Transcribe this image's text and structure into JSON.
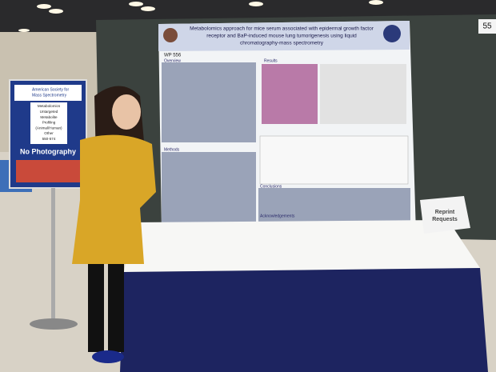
{
  "poster": {
    "title_lines": [
      "Metabolomics approach for mice serum associated with epidermal growth factor",
      "receptor and BaP-induced mouse lung tumorigenesis using liquid",
      "chromatography-mass spectrometry"
    ],
    "id": "WP 556",
    "sections": [
      "Overview",
      "Results",
      "Methods",
      "Conclusions",
      "Acknowledgements"
    ]
  },
  "board_number": "55",
  "sign": {
    "organization_lines": [
      "American Society for",
      "Mass Spectrometry"
    ],
    "topic_lines": [
      "Metabolomics",
      "Untargeted",
      "Metabolite",
      "Profiling",
      "(Animal/Human)",
      "Other",
      "550-574"
    ],
    "notice": "No Photography"
  },
  "reprint_lines": [
    "Reprint",
    "Requests"
  ]
}
